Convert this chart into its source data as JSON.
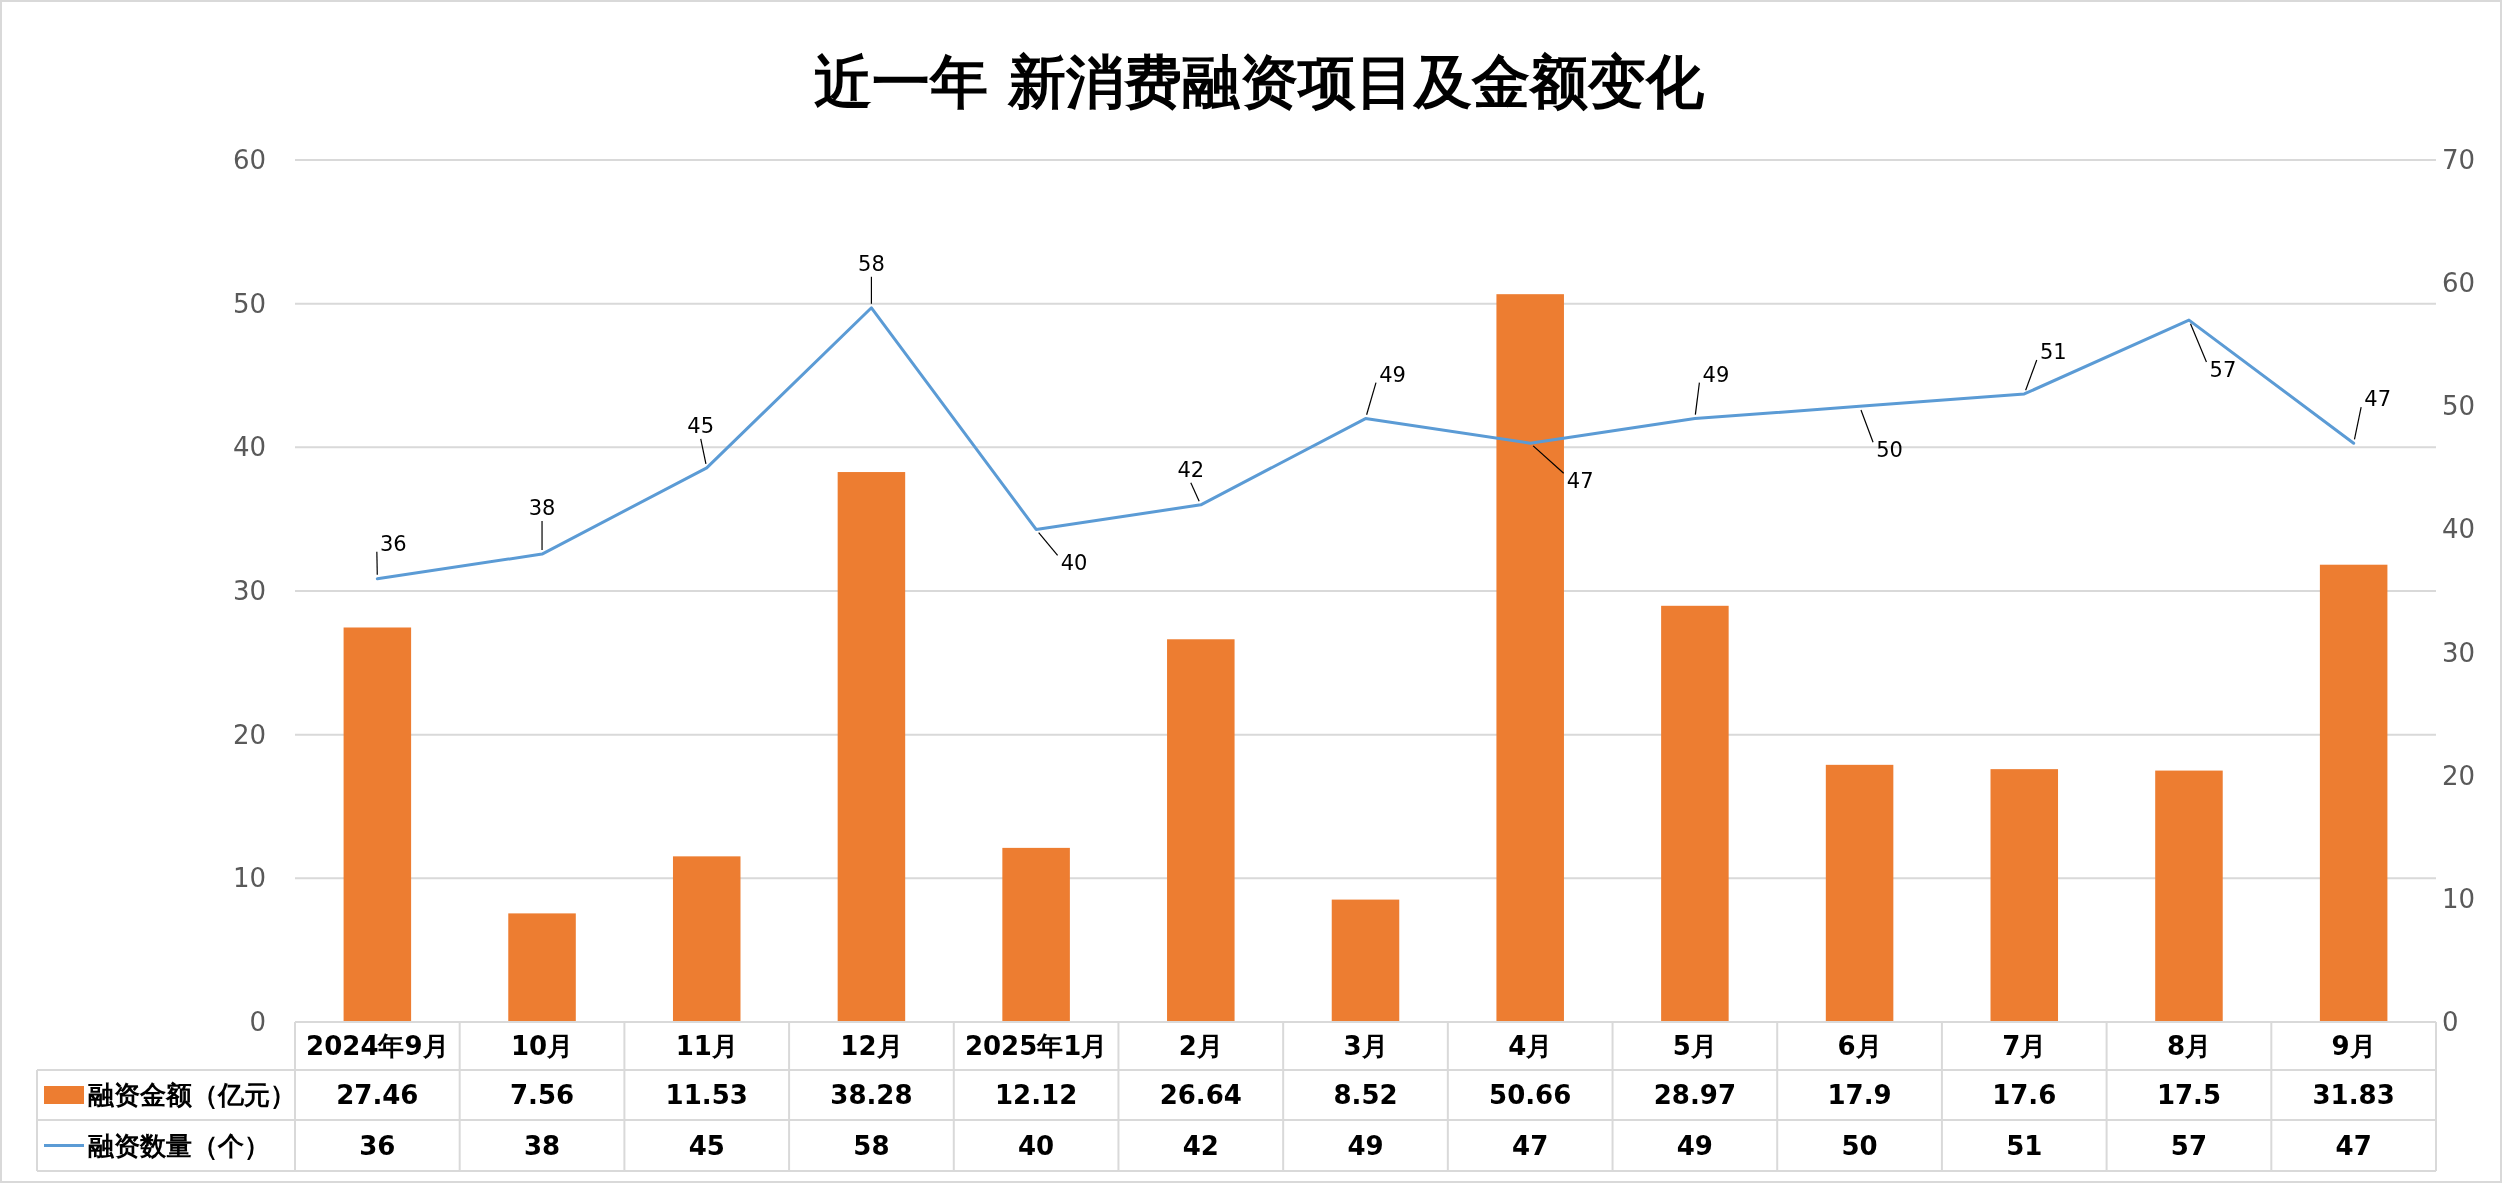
{
  "chart_data": {
    "type": "bar",
    "title": "近一年 新消费融资项目及金额变化",
    "categories": [
      "2024年9月",
      "10月",
      "11月",
      "12月",
      "2025年1月",
      "2月",
      "3月",
      "4月",
      "5月",
      "6月",
      "7月",
      "8月",
      "9月"
    ],
    "series": [
      {
        "name": "融资金额（亿元）",
        "color": "#ed7d31",
        "values": [
          27.46,
          7.56,
          11.53,
          38.28,
          12.12,
          26.64,
          8.52,
          50.66,
          28.97,
          17.9,
          17.6,
          17.5,
          31.83
        ]
      },
      {
        "name": "融资数量（个）",
        "type": "line",
        "axis": "y2",
        "color": "#5b9bd5",
        "values": [
          36,
          38,
          45,
          58,
          40,
          42,
          49,
          47,
          49,
          50,
          51,
          57,
          47
        ]
      }
    ],
    "ylim": [
      0,
      60
    ],
    "yticks": [
      0,
      10,
      20,
      30,
      40,
      50,
      60
    ],
    "y2lim": [
      0,
      70
    ],
    "y2ticks": [
      0,
      10,
      20,
      30,
      40,
      50,
      60,
      70
    ],
    "grid": "y",
    "legend": "bottom",
    "data_labels": true,
    "annotations": [
      "36",
      "38",
      "45",
      "58",
      "40",
      "42",
      "49",
      "47",
      "49",
      "50",
      "51",
      "57",
      "47"
    ]
  }
}
